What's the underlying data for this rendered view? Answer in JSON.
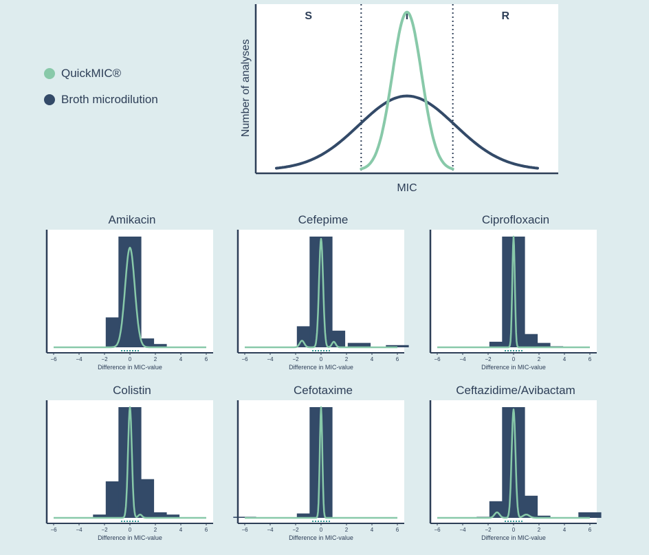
{
  "legend": {
    "items": [
      {
        "label": "QuickMIC®",
        "color": "#88c9a9"
      },
      {
        "label": "Broth microdilution",
        "color": "#334a68"
      }
    ]
  },
  "colors": {
    "quickmic": "#88c9a9",
    "broth": "#334a68",
    "background": "#deecee",
    "axis": "#2d3e57"
  },
  "chart_data": [
    {
      "type": "line",
      "title": "",
      "xlabel": "MIC",
      "ylabel": "Number of analyses",
      "regions": [
        "S",
        "I",
        "R"
      ],
      "region_boundaries": [
        -1,
        1
      ],
      "xlim": [
        -3.3,
        3.3
      ],
      "ylim": [
        0,
        1.05
      ],
      "series": [
        {
          "name": "Broth microdilution",
          "distribution": "normal",
          "mean": 0,
          "sd": 1.05,
          "peak": 0.48,
          "baseline": 0.02
        },
        {
          "name": "QuickMIC®",
          "distribution": "normal",
          "mean": 0,
          "sd": 0.32,
          "peak": 1.0,
          "baseline": 0.02,
          "range": [
            -1,
            1
          ]
        }
      ]
    },
    {
      "type": "bar",
      "title": "Amikacin",
      "xlabel": "Difference in MIC-value",
      "xticks": [
        -6,
        -4,
        -2,
        0,
        2,
        4,
        6
      ],
      "xlim": [
        -6,
        6
      ],
      "ylim": [
        0,
        1
      ],
      "bars": [
        {
          "x": -1,
          "value": 0.27
        },
        {
          "x": 0,
          "value": 1.0
        },
        {
          "x": 1,
          "value": 0.08
        },
        {
          "x": 2,
          "value": 0.03
        }
      ],
      "density": [
        {
          "mean": 0,
          "sd": 0.38,
          "peak": 0.9
        }
      ]
    },
    {
      "type": "bar",
      "title": "Cefepime",
      "xlabel": "Difference in MIC-value",
      "xticks": [
        -6,
        -4,
        -2,
        0,
        2,
        4,
        6
      ],
      "xlim": [
        -6,
        6
      ],
      "ylim": [
        0,
        1
      ],
      "bars": [
        {
          "x": -1,
          "value": 0.19
        },
        {
          "x": 0,
          "value": 1.0
        },
        {
          "x": 1,
          "value": 0.15
        },
        {
          "x": 3,
          "value": 0.04
        },
        {
          "x": 6,
          "value": 0.02
        }
      ],
      "density": [
        {
          "mean": 0,
          "sd": 0.16,
          "peak": 0.98
        },
        {
          "mean": -1.5,
          "sd": 0.18,
          "peak": 0.06
        },
        {
          "mean": 1,
          "sd": 0.15,
          "peak": 0.05
        }
      ]
    },
    {
      "type": "bar",
      "title": "Ciprofloxacin",
      "xlabel": "Difference in MIC-value",
      "xticks": [
        -6,
        -4,
        -2,
        0,
        2,
        4,
        6
      ],
      "xlim": [
        -6,
        6
      ],
      "ylim": [
        0,
        1
      ],
      "bars": [
        {
          "x": -1,
          "value": 0.05
        },
        {
          "x": 0,
          "value": 1.0
        },
        {
          "x": 1,
          "value": 0.12
        },
        {
          "x": 2,
          "value": 0.04
        },
        {
          "x": 3,
          "value": 0.01
        }
      ],
      "density": [
        {
          "mean": 0,
          "sd": 0.1,
          "peak": 1.0
        }
      ]
    },
    {
      "type": "bar",
      "title": "Colistin",
      "xlabel": "Difference in MIC-value",
      "xticks": [
        -6,
        -4,
        -2,
        0,
        2,
        4,
        6
      ],
      "xlim": [
        -6,
        6
      ],
      "ylim": [
        0,
        1
      ],
      "bars": [
        {
          "x": -2,
          "value": 0.03
        },
        {
          "x": -1,
          "value": 0.33
        },
        {
          "x": 0,
          "value": 1.0
        },
        {
          "x": 1,
          "value": 0.35
        },
        {
          "x": 2,
          "value": 0.05
        },
        {
          "x": 3,
          "value": 0.03
        }
      ],
      "density": [
        {
          "mean": 0,
          "sd": 0.15,
          "peak": 1.0
        },
        {
          "mean": 0.8,
          "sd": 0.15,
          "peak": 0.03
        }
      ]
    },
    {
      "type": "bar",
      "title": "Cefotaxime",
      "xlabel": "Difference in MIC-value",
      "xticks": [
        -6,
        -4,
        -2,
        0,
        2,
        4,
        6
      ],
      "xlim": [
        -6,
        6
      ],
      "ylim": [
        0,
        1
      ],
      "bars": [
        {
          "x": -6,
          "value": 0.01
        },
        {
          "x": -1,
          "value": 0.04
        },
        {
          "x": 0,
          "value": 1.0
        }
      ],
      "density": [
        {
          "mean": 0,
          "sd": 0.1,
          "peak": 1.0
        }
      ]
    },
    {
      "type": "bar",
      "title": "Ceftazidime/Avibactam",
      "xlabel": "Difference in MIC-value",
      "xticks": [
        -6,
        -4,
        -2,
        0,
        2,
        4,
        6
      ],
      "xlim": [
        -6,
        6
      ],
      "ylim": [
        0,
        1
      ],
      "bars": [
        {
          "x": -2,
          "value": 0.01
        },
        {
          "x": -1,
          "value": 0.15
        },
        {
          "x": 0,
          "value": 1.0
        },
        {
          "x": 1,
          "value": 0.2
        },
        {
          "x": 2,
          "value": 0.02
        },
        {
          "x": 6,
          "value": 0.05
        }
      ],
      "density": [
        {
          "mean": 0,
          "sd": 0.15,
          "peak": 0.98
        },
        {
          "mean": -1.3,
          "sd": 0.2,
          "peak": 0.05
        },
        {
          "mean": 1,
          "sd": 0.25,
          "peak": 0.03
        }
      ]
    }
  ]
}
